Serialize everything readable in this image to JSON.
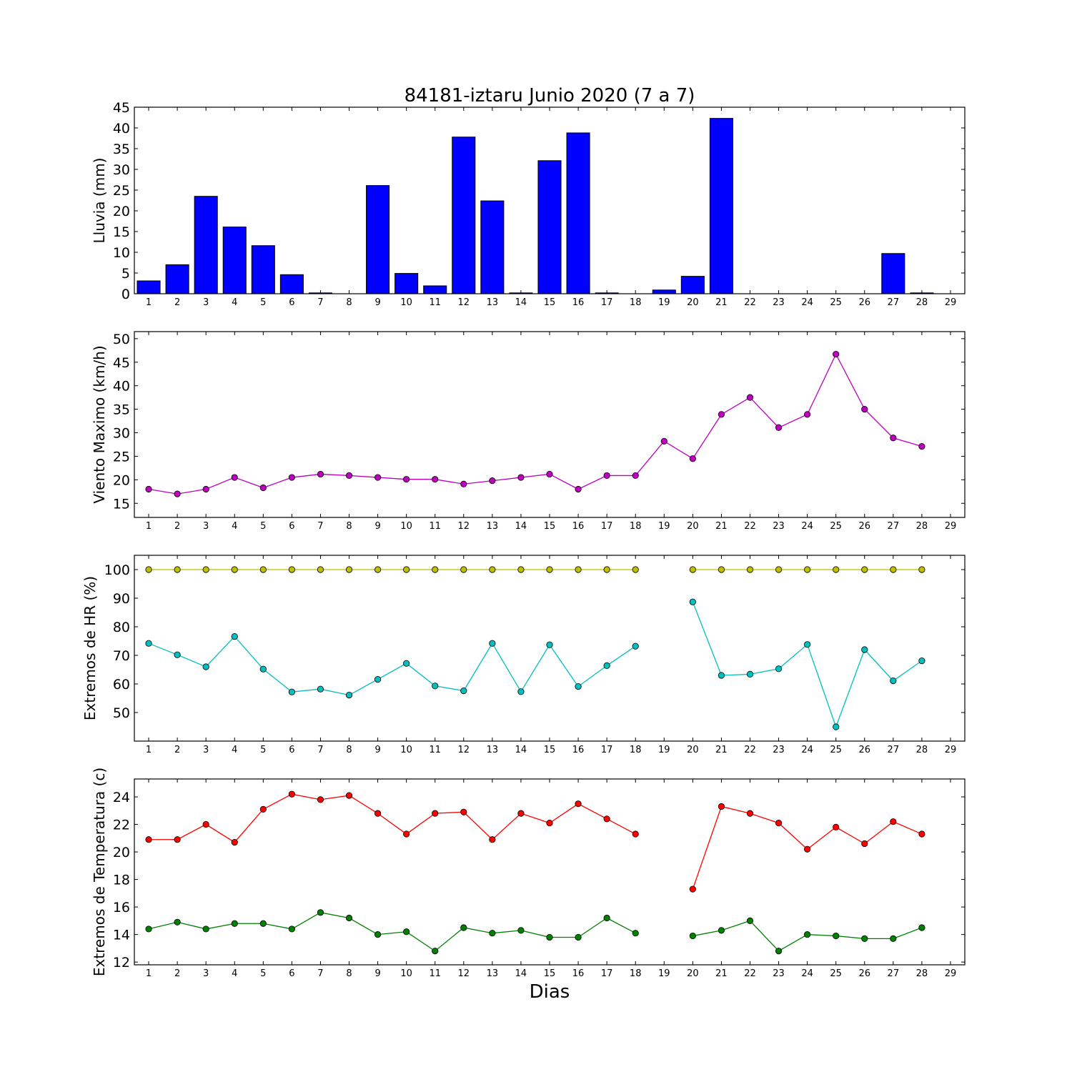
{
  "figure": {
    "title": "84181-iztaru Junio 2020  (7 a 7)",
    "xlabel": "Dias"
  },
  "chart_data": [
    {
      "type": "bar",
      "ylabel": "Lluvia (mm)",
      "ylim": [
        0,
        45
      ],
      "yticks": [
        0,
        5,
        10,
        15,
        20,
        25,
        30,
        35,
        40,
        45
      ],
      "xticks": [
        1,
        2,
        3,
        4,
        5,
        6,
        7,
        8,
        9,
        10,
        11,
        12,
        13,
        14,
        15,
        16,
        17,
        18,
        19,
        20,
        21,
        22,
        23,
        24,
        25,
        26,
        27,
        28,
        29
      ],
      "color": "#0000ff",
      "categories": [
        1,
        2,
        3,
        4,
        5,
        6,
        7,
        8,
        9,
        10,
        11,
        12,
        13,
        14,
        15,
        16,
        17,
        18,
        19,
        20,
        21,
        22,
        23,
        24,
        25,
        26,
        27,
        28
      ],
      "values": [
        3.1,
        7.0,
        23.5,
        16.1,
        11.6,
        4.6,
        0.2,
        0.0,
        26.1,
        4.9,
        1.9,
        37.8,
        22.4,
        0.2,
        32.1,
        38.8,
        0.2,
        0.0,
        0.9,
        4.2,
        42.3,
        0.0,
        0.0,
        0.0,
        0.0,
        0.0,
        9.7,
        0.2
      ]
    },
    {
      "type": "line",
      "ylabel": "Viento Maximo (km/h)",
      "ylim": [
        12,
        51.5
      ],
      "yticks": [
        15,
        20,
        25,
        30,
        35,
        40,
        45,
        50
      ],
      "xticks": [
        1,
        2,
        3,
        4,
        5,
        6,
        7,
        8,
        9,
        10,
        11,
        12,
        13,
        14,
        15,
        16,
        17,
        18,
        19,
        20,
        21,
        22,
        23,
        24,
        25,
        26,
        27,
        28,
        29
      ],
      "x": [
        1,
        2,
        3,
        4,
        5,
        6,
        7,
        8,
        9,
        10,
        11,
        12,
        13,
        14,
        15,
        16,
        17,
        18,
        19,
        20,
        21,
        22,
        23,
        24,
        25,
        26,
        27,
        28
      ],
      "series": [
        {
          "color": "#bf00bf",
          "values": [
            18.0,
            17.0,
            18.0,
            20.5,
            18.3,
            20.5,
            21.2,
            20.9,
            20.5,
            20.1,
            20.1,
            19.1,
            19.8,
            20.5,
            21.2,
            18.0,
            20.9,
            20.9,
            28.2,
            24.5,
            33.9,
            37.5,
            31.1,
            33.9,
            46.7,
            35.0,
            28.9,
            27.1
          ]
        }
      ]
    },
    {
      "type": "line",
      "ylabel": "Extremos de HR (%)",
      "ylim": [
        40,
        105
      ],
      "yticks": [
        50,
        60,
        70,
        80,
        90,
        100
      ],
      "xticks": [
        1,
        2,
        3,
        4,
        5,
        6,
        7,
        8,
        9,
        10,
        11,
        12,
        13,
        14,
        15,
        16,
        17,
        18,
        19,
        20,
        21,
        22,
        23,
        24,
        25,
        26,
        27,
        28,
        29
      ],
      "x": [
        1,
        2,
        3,
        4,
        5,
        6,
        7,
        8,
        9,
        10,
        11,
        12,
        13,
        14,
        15,
        16,
        17,
        18,
        19,
        20,
        21,
        22,
        23,
        24,
        25,
        26,
        27,
        28
      ],
      "series": [
        {
          "color": "#bfbf00",
          "values": [
            100,
            100,
            100,
            100,
            100,
            100,
            100,
            100,
            100,
            100,
            100,
            100,
            100,
            100,
            100,
            100,
            100,
            100,
            null,
            100,
            100,
            100,
            100,
            100,
            100,
            100,
            100,
            100
          ]
        },
        {
          "color": "#00bfbf",
          "values": [
            74.2,
            70.2,
            66.0,
            76.6,
            65.2,
            57.2,
            58.2,
            56.1,
            61.6,
            67.2,
            59.3,
            57.6,
            74.2,
            57.3,
            73.7,
            59.1,
            66.4,
            73.2,
            null,
            88.7,
            63.0,
            63.4,
            65.3,
            73.8,
            45.0,
            72.0,
            61.1,
            68.1
          ]
        }
      ]
    },
    {
      "type": "line",
      "ylabel": "Extremos de Temperatura (c)",
      "ylim": [
        11.8,
        25.3
      ],
      "yticks": [
        12,
        14,
        16,
        18,
        20,
        22,
        24
      ],
      "xticks": [
        1,
        2,
        3,
        4,
        5,
        6,
        7,
        8,
        9,
        10,
        11,
        12,
        13,
        14,
        15,
        16,
        17,
        18,
        19,
        20,
        21,
        22,
        23,
        24,
        25,
        26,
        27,
        28,
        29
      ],
      "x": [
        1,
        2,
        3,
        4,
        5,
        6,
        7,
        8,
        9,
        10,
        11,
        12,
        13,
        14,
        15,
        16,
        17,
        18,
        19,
        20,
        21,
        22,
        23,
        24,
        25,
        26,
        27,
        28
      ],
      "series": [
        {
          "color": "#ff0000",
          "values": [
            20.9,
            20.9,
            22.0,
            20.7,
            23.1,
            24.2,
            23.8,
            24.1,
            22.8,
            21.3,
            22.8,
            22.9,
            20.9,
            22.8,
            22.1,
            23.5,
            22.4,
            21.3,
            null,
            17.3,
            23.3,
            22.8,
            22.1,
            20.2,
            21.8,
            20.6,
            22.2,
            21.3
          ]
        },
        {
          "color": "#008000",
          "values": [
            14.4,
            14.9,
            14.4,
            14.8,
            14.8,
            14.4,
            15.6,
            15.2,
            14.0,
            14.2,
            12.8,
            14.5,
            14.1,
            14.3,
            13.8,
            13.8,
            15.2,
            14.1,
            null,
            13.9,
            14.3,
            15.0,
            12.8,
            14.0,
            13.9,
            13.7,
            13.7,
            14.5
          ]
        }
      ]
    }
  ]
}
